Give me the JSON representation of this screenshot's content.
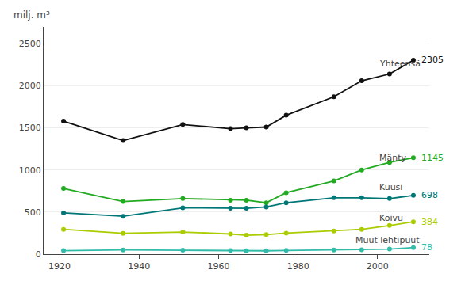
{
  "chart_data": {
    "type": "line",
    "ylabel": "milj. m³",
    "x": [
      1921,
      1936,
      1951,
      1963,
      1967,
      1972,
      1977,
      1989,
      1996,
      2003,
      2009
    ],
    "series": [
      {
        "name": "Yhteensä",
        "color": "#111111",
        "values": [
          1580,
          1350,
          1540,
          1490,
          1500,
          1510,
          1650,
          1870,
          2060,
          2140,
          2305
        ]
      },
      {
        "name": "Mänty",
        "color": "#22aa22",
        "values": [
          780,
          625,
          660,
          640,
          640,
          610,
          730,
          870,
          1000,
          1090,
          1145
        ]
      },
      {
        "name": "Kuusi",
        "color": "#007777",
        "values": [
          490,
          450,
          550,
          545,
          545,
          560,
          610,
          670,
          670,
          660,
          698
        ]
      },
      {
        "name": "Koivu",
        "color": "#aacc00",
        "values": [
          295,
          248,
          263,
          240,
          225,
          232,
          250,
          274,
          295,
          340,
          384
        ]
      },
      {
        "name": "Muut lehtipuut",
        "color": "#33bbaa",
        "values": [
          42,
          50,
          46,
          42,
          40,
          40,
          44,
          50,
          52,
          60,
          78
        ]
      }
    ],
    "end_labels": [
      {
        "text": "2305",
        "x": 2009,
        "y": 2305,
        "color": "#111111"
      },
      {
        "text": "1145",
        "x": 2009,
        "y": 1145,
        "color": "#22aa22"
      },
      {
        "text": "698",
        "x": 2009,
        "y": 698,
        "color": "#007777"
      },
      {
        "text": "384",
        "x": 2009,
        "y": 384,
        "color": "#aacc00"
      },
      {
        "text": "78",
        "x": 2009,
        "y": 78,
        "color": "#33bbaa"
      }
    ],
    "annotations": [
      {
        "text": "Yhteensä",
        "x": 2000,
        "y": 2185
      },
      {
        "text": "Mänty",
        "x": 2000,
        "y": 1060
      },
      {
        "text": "Kuusi",
        "x": 2000,
        "y": 715
      },
      {
        "text": "Koivu",
        "x": 2000,
        "y": 345
      },
      {
        "text": "Muut lehtipuut",
        "x": 1994,
        "y": 87
      }
    ],
    "marker": "circle",
    "xlim": [
      1916,
      2013
    ],
    "ylim": [
      0,
      2700
    ],
    "xticks": [
      1920,
      1940,
      1960,
      1980,
      2000
    ],
    "yticks": [
      0,
      500,
      1000,
      1500,
      2000,
      2500
    ],
    "grid": true
  }
}
